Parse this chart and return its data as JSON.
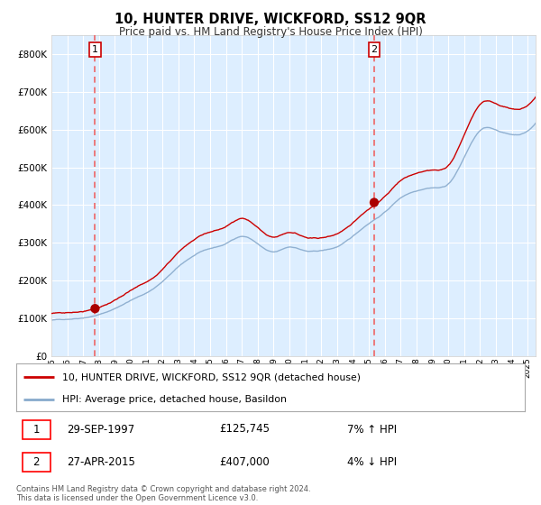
{
  "title": "10, HUNTER DRIVE, WICKFORD, SS12 9QR",
  "subtitle": "Price paid vs. HM Land Registry's House Price Index (HPI)",
  "legend_line1": "10, HUNTER DRIVE, WICKFORD, SS12 9QR (detached house)",
  "legend_line2": "HPI: Average price, detached house, Basildon",
  "footnote": "Contains HM Land Registry data © Crown copyright and database right 2024.\nThis data is licensed under the Open Government Licence v3.0.",
  "transaction1_date": "29-SEP-1997",
  "transaction1_price": "£125,745",
  "transaction1_hpi": "7% ↑ HPI",
  "transaction2_date": "27-APR-2015",
  "transaction2_price": "£407,000",
  "transaction2_hpi": "4% ↓ HPI",
  "xlim": [
    1995.0,
    2025.5
  ],
  "ylim": [
    0,
    850000
  ],
  "yticks": [
    0,
    100000,
    200000,
    300000,
    400000,
    500000,
    600000,
    700000,
    800000
  ],
  "xticks": [
    1995,
    1996,
    1997,
    1998,
    1999,
    2000,
    2001,
    2002,
    2003,
    2004,
    2005,
    2006,
    2007,
    2008,
    2009,
    2010,
    2011,
    2012,
    2013,
    2014,
    2015,
    2016,
    2017,
    2018,
    2019,
    2020,
    2021,
    2022,
    2023,
    2024,
    2025
  ],
  "transaction1_x": 1997.75,
  "transaction2_x": 2015.33,
  "transaction1_y": 125745,
  "transaction2_y": 407000,
  "red_line_color": "#cc0000",
  "blue_line_color": "#88aacc",
  "vline_color": "#ee6666",
  "dot_color": "#aa0000",
  "grid_color": "#cccccc",
  "background_color": "#ffffff",
  "plot_bg_color": "#ddeeff"
}
